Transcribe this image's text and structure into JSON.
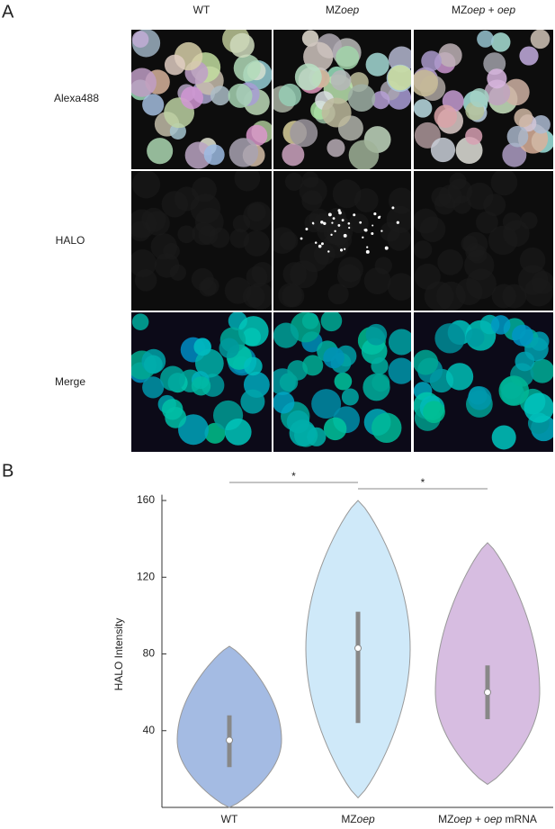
{
  "panel_labels": [
    "A",
    "B"
  ],
  "image_grid": {
    "column_headers": [
      [
        "WT"
      ],
      [
        "MZ",
        "oep"
      ],
      [
        "MZ",
        "oep",
        " + ",
        "oep"
      ]
    ],
    "row_labels": [
      "Alexa488",
      "HALO",
      "Merge"
    ]
  },
  "chart_data": {
    "type": "violin",
    "y_label": "HALO Intensity",
    "categories": [
      [
        "WT"
      ],
      [
        "MZ",
        "oep"
      ],
      [
        "MZ",
        "oep",
        " + ",
        "oep",
        " mRNA"
      ]
    ],
    "series": [
      {
        "color": "#4a78c8",
        "min": 0,
        "q1": 21,
        "median": 35,
        "q3": 48,
        "max": 84
      },
      {
        "color": "#9fd3f3",
        "min": 5,
        "q1": 44,
        "median": 83,
        "q3": 102,
        "max": 160
      },
      {
        "color": "#b07cc4",
        "min": 12,
        "q1": 46,
        "median": 60,
        "q3": 74,
        "max": 138
      }
    ],
    "ylim": [
      0,
      163
    ],
    "yticks": [
      40,
      80,
      120,
      160
    ],
    "significance": [
      {
        "from": 0,
        "to": 1,
        "label": "*"
      },
      {
        "from": 1,
        "to": 2,
        "label": "*"
      }
    ]
  }
}
